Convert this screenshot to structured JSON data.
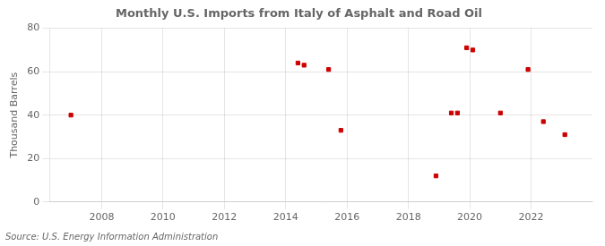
{
  "chart_data": {
    "type": "scatter",
    "title": "Monthly U.S. Imports from Italy of Asphalt and Road Oil",
    "ylabel": "Thousand Barrels",
    "source": "Source: U.S. Energy Information Administration",
    "x": [
      2007.0,
      2014.4,
      2014.6,
      2015.4,
      2015.8,
      2018.9,
      2019.4,
      2019.6,
      2019.9,
      2020.1,
      2021.0,
      2021.9,
      2022.4,
      2023.1
    ],
    "values": [
      40,
      64,
      63,
      61,
      33,
      12,
      41,
      41,
      71,
      70,
      41,
      61,
      37,
      31
    ],
    "color": "#cc0000",
    "marker": "square",
    "xlim": [
      2006.3,
      2024.0
    ],
    "xticks": [
      2008,
      2010,
      2012,
      2014,
      2016,
      2018,
      2020,
      2022
    ],
    "ylim": [
      0,
      80
    ],
    "yticks": [
      0,
      20,
      40,
      60,
      80
    ],
    "grid": true
  }
}
